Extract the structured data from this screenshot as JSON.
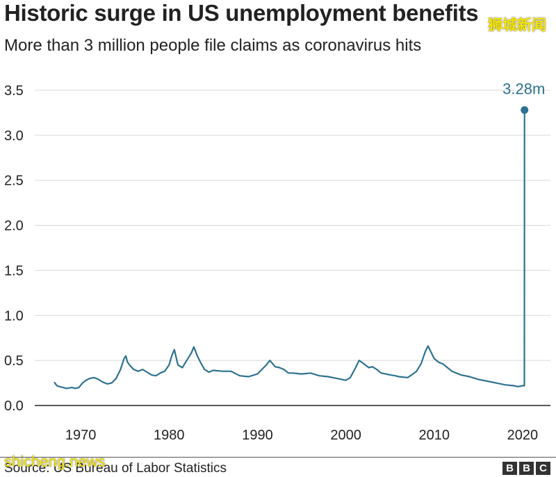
{
  "title": "Historic surge in US unemployment benefits",
  "subtitle": "More than 3 million people file claims as coronavirus hits",
  "source": "Source: US Bureau of Labor Statistics",
  "watermark_top": "狮城新闻",
  "watermark_bottom": "shicheng.news",
  "brand_letters": [
    "B",
    "B",
    "C"
  ],
  "colors": {
    "line": "#2d7290",
    "grid": "#d8d8d8",
    "axis": "#222222",
    "text": "#222222"
  },
  "chart_data": {
    "type": "line",
    "title": "Historic surge in US unemployment benefits",
    "subtitle": "More than 3 million people file claims as coronavirus hits",
    "xlabel": "",
    "ylabel": "",
    "xlim": [
      1967,
      2020.4
    ],
    "ylim": [
      0,
      3.5
    ],
    "x_ticks": [
      1970,
      1980,
      1990,
      2000,
      2010,
      2020
    ],
    "y_ticks": [
      0.0,
      0.5,
      1.0,
      1.5,
      2.0,
      2.5,
      3.0,
      3.5
    ],
    "y_tick_labels": [
      "0.0",
      "0.5",
      "1.0",
      "1.5",
      "2.0",
      "2.5",
      "3.0",
      "3.5"
    ],
    "grid": "horizontal",
    "x": [
      1967.0,
      1967.3,
      1967.6,
      1968.0,
      1968.4,
      1969.0,
      1969.4,
      1969.8,
      1970.2,
      1970.6,
      1971.0,
      1971.5,
      1972.0,
      1972.5,
      1973.0,
      1973.5,
      1974.0,
      1974.5,
      1974.9,
      1975.1,
      1975.3,
      1975.6,
      1976.0,
      1976.5,
      1977.0,
      1977.5,
      1978.0,
      1978.5,
      1979.0,
      1979.5,
      1980.0,
      1980.3,
      1980.6,
      1981.0,
      1981.5,
      1982.0,
      1982.5,
      1982.8,
      1983.2,
      1983.6,
      1984.0,
      1984.5,
      1985.0,
      1986.0,
      1987.0,
      1988.0,
      1989.0,
      1990.0,
      1990.5,
      1991.0,
      1991.4,
      1992.0,
      1992.5,
      1993.0,
      1993.5,
      1994.0,
      1995.0,
      1996.0,
      1997.0,
      1998.0,
      1999.0,
      2000.0,
      2000.5,
      2001.0,
      2001.5,
      2001.8,
      2002.2,
      2002.6,
      2003.0,
      2003.5,
      2004.0,
      2004.5,
      2005.0,
      2005.6,
      2006.0,
      2007.0,
      2007.6,
      2008.0,
      2008.5,
      2009.0,
      2009.3,
      2009.6,
      2010.0,
      2010.5,
      2011.0,
      2011.5,
      2012.0,
      2013.0,
      2014.0,
      2015.0,
      2016.0,
      2017.0,
      2018.0,
      2019.0,
      2019.5,
      2020.0,
      2020.2,
      2020.22
    ],
    "series": [
      {
        "values": [
          0.26,
          0.22,
          0.21,
          0.2,
          0.19,
          0.2,
          0.19,
          0.2,
          0.25,
          0.28,
          0.3,
          0.31,
          0.29,
          0.26,
          0.24,
          0.25,
          0.3,
          0.4,
          0.52,
          0.55,
          0.48,
          0.44,
          0.4,
          0.38,
          0.4,
          0.37,
          0.34,
          0.33,
          0.36,
          0.38,
          0.45,
          0.55,
          0.62,
          0.45,
          0.42,
          0.5,
          0.58,
          0.65,
          0.55,
          0.47,
          0.4,
          0.37,
          0.39,
          0.38,
          0.38,
          0.33,
          0.32,
          0.35,
          0.4,
          0.45,
          0.5,
          0.43,
          0.42,
          0.4,
          0.36,
          0.36,
          0.35,
          0.36,
          0.33,
          0.32,
          0.3,
          0.28,
          0.31,
          0.4,
          0.5,
          0.48,
          0.45,
          0.42,
          0.43,
          0.4,
          0.36,
          0.35,
          0.34,
          0.33,
          0.32,
          0.31,
          0.35,
          0.38,
          0.46,
          0.6,
          0.66,
          0.6,
          0.52,
          0.48,
          0.46,
          0.42,
          0.38,
          0.34,
          0.32,
          0.29,
          0.27,
          0.25,
          0.23,
          0.22,
          0.21,
          0.22,
          0.22,
          3.28
        ]
      }
    ],
    "annotations": [
      {
        "text": "3.28m",
        "x": 2020.22,
        "y": 3.28
      }
    ]
  }
}
